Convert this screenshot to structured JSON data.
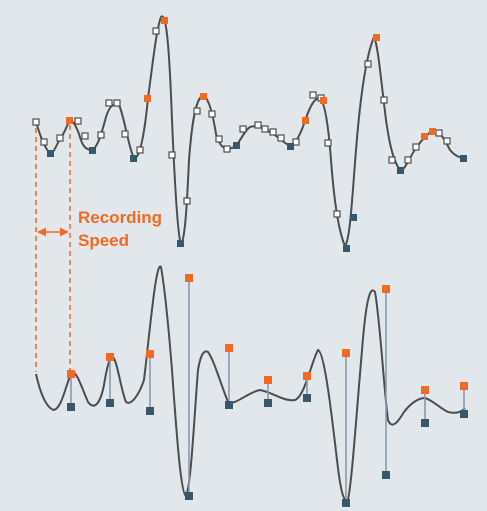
{
  "annotation": {
    "line1": "Recording",
    "line2": "Speed"
  },
  "colors": {
    "background": "#e2e7ec",
    "curve": "#4d4d4d",
    "accent_orange": "#f26a21",
    "marker_dark": "#35596b",
    "marker_white": "#ffffff",
    "stem": "#8c9aa8"
  },
  "icons": {
    "arrow": "double-headed-arrow-icon"
  }
}
